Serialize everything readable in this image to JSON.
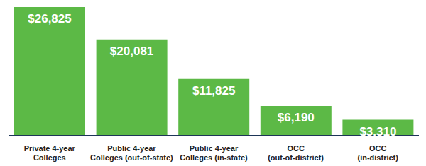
{
  "chart_data": {
    "type": "bar",
    "categories": [
      "Private 4-year\nColleges",
      "Public 4-year\nColleges (out-of-state)",
      "Public 4-year\nColleges (in-state)",
      "OCC\n(out-of-district)",
      "OCC\n(in-district)"
    ],
    "values": [
      26825,
      20081,
      11825,
      6190,
      3310
    ],
    "value_labels": [
      "$26,825",
      "$20,081",
      "$11,825",
      "$6,190",
      "$3,310"
    ],
    "data_labels": true,
    "color": "#5cb946",
    "tick_labels": "x"
  }
}
